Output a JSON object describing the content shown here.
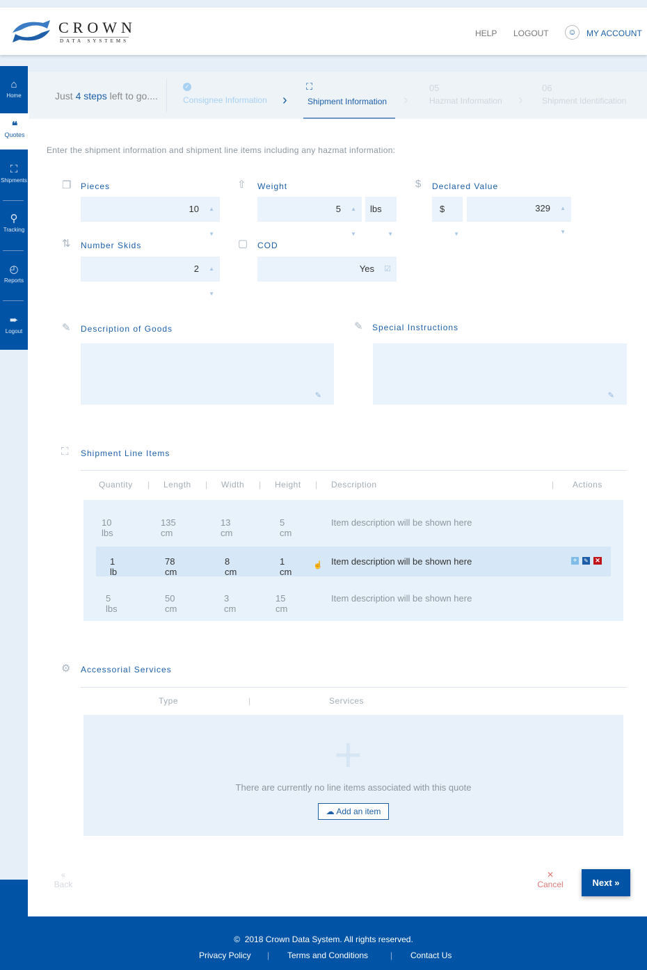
{
  "header": {
    "logo_text": "CROWN",
    "logo_sub": "DATA SYSTEMS",
    "help": "HELP",
    "logout": "LOGOUT",
    "my_account": "MY ACCOUNT"
  },
  "sidebar": {
    "items": [
      {
        "label": "Home",
        "icon": "home-icon"
      },
      {
        "label": "Quotes",
        "icon": "quote-icon"
      },
      {
        "label": "Shipments",
        "icon": "truck-icon"
      },
      {
        "label": "Tracking",
        "icon": "search-icon"
      },
      {
        "label": "Reports",
        "icon": "pie-chart-icon"
      },
      {
        "label": "Logout",
        "icon": "logout-icon"
      }
    ],
    "active": "Quotes"
  },
  "steps": {
    "intro_pre": "Just ",
    "intro_count": "4 steps",
    "intro_post": " left to go....",
    "items": [
      {
        "num": "",
        "label": "Consignee Information",
        "state": "done"
      },
      {
        "num": "",
        "label": "Shipment Information",
        "state": "active"
      },
      {
        "num": "05",
        "label": "Hazmat Information",
        "state": "pending"
      },
      {
        "num": "06",
        "label": "Shipment Identification",
        "state": "pending"
      }
    ]
  },
  "instructions": "Enter the shipment information and shipment line items including any hazmat information:",
  "form": {
    "pieces": {
      "label": "Pieces",
      "value": "10"
    },
    "weight": {
      "label": "Weight",
      "value": "5",
      "unit": "lbs"
    },
    "declared_value": {
      "label": "Declared Value",
      "currency": "$",
      "value": "329"
    },
    "number_skids": {
      "label": "Number Skids",
      "value": "2"
    },
    "cod": {
      "label": "COD",
      "value": "Yes"
    },
    "description": {
      "label": "Description of Goods",
      "value": ""
    },
    "special": {
      "label": "Special Instructions",
      "value": ""
    }
  },
  "line_items": {
    "title": "Shipment Line Items",
    "columns": [
      "Quantity",
      "Length",
      "Width",
      "Height",
      "Description",
      "Actions"
    ],
    "rows": [
      [
        "10 lbs",
        "135 cm",
        "13 cm",
        "5 cm",
        "Item description will be shown here"
      ],
      [
        "1 lb",
        "78 cm",
        "8 cm",
        "1 cm",
        "Item description will be shown here"
      ],
      [
        "5 lbs",
        "50 cm",
        "3 cm",
        "15 cm",
        "Item description will be shown here"
      ]
    ],
    "highlighted_row": 1
  },
  "accessorial": {
    "title": "Accessorial Services",
    "columns": [
      "Type",
      "Services"
    ],
    "empty": "There are currently no line items associated with this quote",
    "add": "Add an item"
  },
  "actions": {
    "back": "Back",
    "cancel": "Cancel",
    "next": "Next"
  },
  "footer": {
    "copyright": "2018 Crown Data System. All rights reserved.",
    "links": [
      "Privacy Policy",
      "Terms and Conditions",
      "Contact Us"
    ]
  },
  "colors": {
    "brand": "#0053a5",
    "cancel": "#e07a7a",
    "delete": "#c0141b"
  }
}
